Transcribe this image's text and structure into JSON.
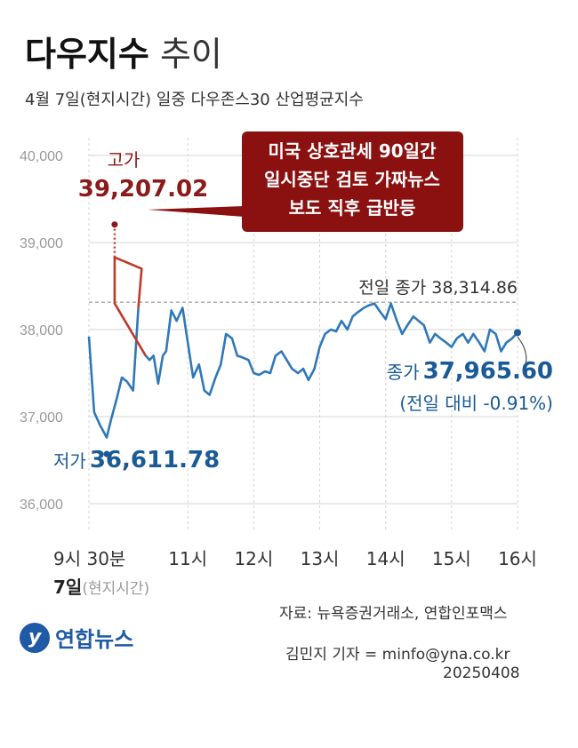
{
  "header": {
    "title_bold": "다우지수",
    "title_light": "추이",
    "subtitle": "4월 7일(현지시간) 일중 다우존스30 산업평균지수"
  },
  "annotations": {
    "high_label": "고가",
    "high_value": "39,207.02",
    "low_label": "저가",
    "low_value": "36,611.78",
    "prev_close": "전일 종가 38,314.86",
    "close_label": "종가",
    "close_value": "37,965.60",
    "close_change": "(전일 대비 -0.91%)",
    "callout": [
      "미국 상호관세 90일간",
      "일시중단 검토 가짜뉴스",
      "보도 직후 급반등"
    ],
    "date_bold": "7일",
    "date_light": "(현지시간)"
  },
  "footer": {
    "source": "자료: 뉴욕증권거래소, 연합인포맥스",
    "reporter": "김민지 기자 = minfo@yna.co.kr",
    "date": "20250408",
    "logo_text": "연합뉴스",
    "logo_icon": "yonhap-logo-icon"
  },
  "colors": {
    "line": "#2f78b9",
    "spike": "#c0392b",
    "high_text": "#8b1a1a",
    "callout_bg": "#8b1010",
    "low_text": "#1a5a96",
    "grid": "#d5d5d5",
    "axis_text": "#9a9a9a"
  },
  "chart_data": {
    "type": "line",
    "title": "다우지수 추이",
    "xlabel": "",
    "ylabel": "",
    "ylim": [
      36000,
      40000
    ],
    "yticks": [
      36000,
      37000,
      38000,
      39000,
      40000
    ],
    "ytick_labels": [
      "36,000",
      "37,000",
      "38,000",
      "39,000",
      "40,000"
    ],
    "xticks": [
      9.5,
      11,
      12,
      13,
      14,
      15,
      16
    ],
    "xtick_labels": [
      "9시 30분",
      "11시",
      "12시",
      "13시",
      "14시",
      "15시",
      "16시"
    ],
    "x_unit": "hour (local time)",
    "reference_line": {
      "label": "전일 종가",
      "value": 38314.86
    },
    "high": {
      "x": 9.89,
      "y": 39207.02
    },
    "low": {
      "x": 9.77,
      "y": 36611.78
    },
    "close": {
      "x": 16.0,
      "y": 37965.6,
      "change_pct": -0.91
    },
    "series": [
      {
        "x": [
          9.5,
          9.58,
          9.67,
          9.77,
          9.83,
          9.92,
          10.0,
          10.08,
          10.17,
          10.25,
          10.3,
          10.36,
          10.42,
          10.48,
          10.55,
          10.62,
          10.67,
          10.75,
          10.83,
          10.92,
          11.0,
          11.08,
          11.17,
          11.25,
          11.33,
          11.42,
          11.5,
          11.58,
          11.67,
          11.75,
          11.83,
          11.92,
          12.0,
          12.08,
          12.17,
          12.25,
          12.33,
          12.42,
          12.5,
          12.58,
          12.67,
          12.75,
          12.83,
          12.92,
          13.0,
          13.08,
          13.17,
          13.25,
          13.33,
          13.42,
          13.5,
          13.58,
          13.67,
          13.75,
          13.83,
          13.92,
          14.0,
          14.08,
          14.17,
          14.25,
          14.33,
          14.42,
          14.5,
          14.58,
          14.67,
          14.75,
          14.83,
          14.92,
          15.0,
          15.08,
          15.17,
          15.25,
          15.33,
          15.42,
          15.5,
          15.58,
          15.67,
          15.75,
          15.83,
          15.92,
          16.0
        ],
        "y": [
          37920,
          37050,
          36900,
          36760,
          36950,
          37200,
          37450,
          37400,
          37300,
          38250,
          38700,
          37700,
          37650,
          37700,
          37380,
          37700,
          37750,
          38220,
          38100,
          38250,
          37850,
          37450,
          37600,
          37300,
          37250,
          37450,
          37600,
          37950,
          37900,
          37700,
          37680,
          37650,
          37500,
          37480,
          37520,
          37500,
          37700,
          37750,
          37650,
          37550,
          37500,
          37550,
          37420,
          37550,
          37800,
          37950,
          38000,
          37980,
          38100,
          38000,
          38150,
          38200,
          38250,
          38280,
          38300,
          38200,
          38120,
          38300,
          38100,
          37950,
          38050,
          38150,
          38100,
          38050,
          37850,
          37950,
          37900,
          37850,
          37800,
          37900,
          37950,
          37850,
          37950,
          37850,
          37750,
          38000,
          37950,
          37750,
          37850,
          37900,
          37966
        ]
      }
    ]
  }
}
